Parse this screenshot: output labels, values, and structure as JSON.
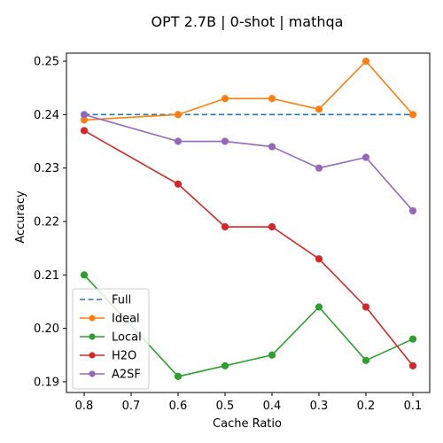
{
  "chart_data": {
    "type": "line",
    "title": "OPT 2.7B | 0-shot | mathqa",
    "xlabel": "Cache Ratio",
    "ylabel": "Accuracy",
    "x": [
      0.8,
      0.7,
      0.6,
      0.5,
      0.4,
      0.3,
      0.2,
      0.1
    ],
    "x_tick_labels": [
      "0.8",
      "0.7",
      "0.6",
      "0.5",
      "0.4",
      "0.3",
      "0.2",
      "0.1"
    ],
    "x_reversed": true,
    "xlim": [
      0.8,
      0.1
    ],
    "ylim": [
      0.188,
      0.2515
    ],
    "y_ticks": [
      0.19,
      0.2,
      0.21,
      0.22,
      0.23,
      0.24,
      0.25
    ],
    "y_tick_labels": [
      "0.19",
      "0.20",
      "0.21",
      "0.22",
      "0.23",
      "0.24",
      "0.25"
    ],
    "grid": false,
    "legend_position": "lower-left",
    "series": [
      {
        "name": "Full",
        "color": "#1f77b4",
        "style": "dashed",
        "marker": "none",
        "x": [
          0.8,
          0.1
        ],
        "values": [
          0.24,
          0.24
        ]
      },
      {
        "name": "Ideal",
        "color": "#ff7f0e",
        "style": "solid",
        "marker": "circle",
        "x": [
          0.8,
          0.6,
          0.5,
          0.4,
          0.3,
          0.2,
          0.1
        ],
        "values": [
          0.239,
          0.24,
          0.243,
          0.243,
          0.241,
          0.25,
          0.24
        ]
      },
      {
        "name": "Local",
        "color": "#2ca02c",
        "style": "solid",
        "marker": "circle",
        "x": [
          0.8,
          0.6,
          0.5,
          0.4,
          0.3,
          0.2,
          0.1
        ],
        "values": [
          0.21,
          0.191,
          0.193,
          0.195,
          0.204,
          0.194,
          0.198
        ]
      },
      {
        "name": "H2O",
        "color": "#d62728",
        "style": "solid",
        "marker": "circle",
        "x": [
          0.8,
          0.6,
          0.5,
          0.4,
          0.3,
          0.2,
          0.1
        ],
        "values": [
          0.237,
          0.227,
          0.219,
          0.219,
          0.213,
          0.204,
          0.193
        ]
      },
      {
        "name": "A2SF",
        "color": "#9467bd",
        "style": "solid",
        "marker": "circle",
        "x": [
          0.8,
          0.6,
          0.5,
          0.4,
          0.3,
          0.2,
          0.1
        ],
        "values": [
          0.24,
          0.235,
          0.235,
          0.234,
          0.23,
          0.232,
          0.222
        ]
      }
    ]
  }
}
